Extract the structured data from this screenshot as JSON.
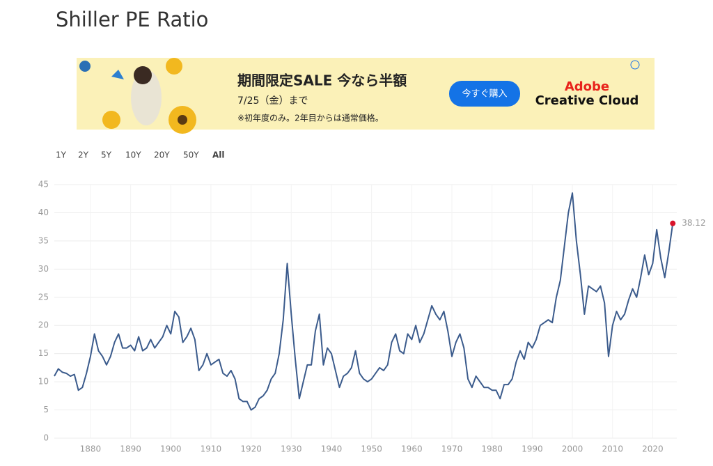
{
  "page": {
    "title": "Shiller PE Ratio",
    "ad": {
      "headline": "期間限定SALE 今なら半額",
      "date": "7/25（金）まで",
      "note": "※初年度のみ。2年目からは通常価格。",
      "button": "今すぐ購入",
      "brand_top": "Adobe",
      "brand_bottom": "Creative Cloud"
    },
    "ranges": [
      "1Y",
      "2Y",
      "5Y",
      "10Y",
      "20Y",
      "50Y",
      "All"
    ]
  },
  "chart_data": {
    "type": "line",
    "x": [
      1871,
      1872,
      1873,
      1874,
      1875,
      1876,
      1877,
      1878,
      1879,
      1880,
      1881,
      1882,
      1883,
      1884,
      1885,
      1886,
      1887,
      1888,
      1889,
      1890,
      1891,
      1892,
      1893,
      1894,
      1895,
      1896,
      1897,
      1898,
      1899,
      1900,
      1901,
      1902,
      1903,
      1904,
      1905,
      1906,
      1907,
      1908,
      1909,
      1910,
      1911,
      1912,
      1913,
      1914,
      1915,
      1916,
      1917,
      1918,
      1919,
      1920,
      1921,
      1922,
      1923,
      1924,
      1925,
      1926,
      1927,
      1928,
      1929,
      1930,
      1931,
      1932,
      1933,
      1934,
      1935,
      1936,
      1937,
      1938,
      1939,
      1940,
      1941,
      1942,
      1943,
      1944,
      1945,
      1946,
      1947,
      1948,
      1949,
      1950,
      1951,
      1952,
      1953,
      1954,
      1955,
      1956,
      1957,
      1958,
      1959,
      1960,
      1961,
      1962,
      1963,
      1964,
      1965,
      1966,
      1967,
      1968,
      1969,
      1970,
      1971,
      1972,
      1973,
      1974,
      1975,
      1976,
      1977,
      1978,
      1979,
      1980,
      1981,
      1982,
      1983,
      1984,
      1985,
      1986,
      1987,
      1988,
      1989,
      1990,
      1991,
      1992,
      1993,
      1994,
      1995,
      1996,
      1997,
      1998,
      1999,
      2000,
      2001,
      2002,
      2003,
      2004,
      2005,
      2006,
      2007,
      2008,
      2009,
      2010,
      2011,
      2012,
      2013,
      2014,
      2015,
      2016,
      2017,
      2018,
      2019,
      2020,
      2021,
      2022,
      2023,
      2024,
      2025
    ],
    "series": [
      {
        "name": "Shiller PE Ratio",
        "color": "#3b5b8c",
        "values": [
          11,
          12.3,
          11.7,
          11.5,
          11,
          11.3,
          8.5,
          9,
          11.5,
          14.5,
          18.5,
          15.5,
          14.5,
          13,
          14.5,
          17,
          18.5,
          16,
          16,
          16.5,
          15.5,
          18,
          15.5,
          16,
          17.5,
          16,
          17,
          18,
          20,
          18.5,
          22.5,
          21.5,
          17,
          18,
          19.5,
          17.5,
          12,
          13,
          15,
          13,
          13.5,
          14,
          11.5,
          11,
          12,
          10.5,
          7,
          6.5,
          6.5,
          5,
          5.5,
          7,
          7.5,
          8.5,
          10.5,
          11.5,
          15,
          21,
          31,
          22,
          14,
          7,
          10,
          13,
          13,
          19,
          22,
          13,
          16,
          15,
          12,
          9,
          11,
          11.5,
          12.5,
          15.5,
          11.5,
          10.5,
          10,
          10.5,
          11.5,
          12.5,
          12,
          13,
          17,
          18.5,
          15.5,
          15,
          18.5,
          17.5,
          20,
          17,
          18.5,
          21,
          23.5,
          22,
          21,
          22.5,
          19,
          14.5,
          17,
          18.5,
          16,
          10.5,
          9,
          11,
          10,
          9,
          9,
          8.5,
          8.5,
          7,
          9.5,
          9.5,
          10.5,
          13.5,
          15.5,
          14,
          17,
          16,
          17.5,
          20,
          20.5,
          21,
          20.5,
          25,
          28,
          34,
          40,
          43.5,
          35,
          29,
          22,
          27,
          26.5,
          26,
          27,
          24,
          14.5,
          20,
          22.5,
          21,
          22,
          24.5,
          26.5,
          25,
          28.5,
          32.5,
          29,
          31,
          37,
          32,
          28.5,
          33,
          38.12
        ]
      }
    ],
    "last_point_color": "#d9132b",
    "xlim": [
      1871,
      2026
    ],
    "xticks": [
      1880,
      1890,
      1900,
      1910,
      1920,
      1930,
      1940,
      1950,
      1960,
      1970,
      1980,
      1990,
      2000,
      2010,
      2020
    ],
    "ylim": [
      0,
      45
    ],
    "yticks": [
      0,
      5,
      10,
      15,
      20,
      25,
      30,
      35,
      40,
      45
    ],
    "grid": true
  }
}
